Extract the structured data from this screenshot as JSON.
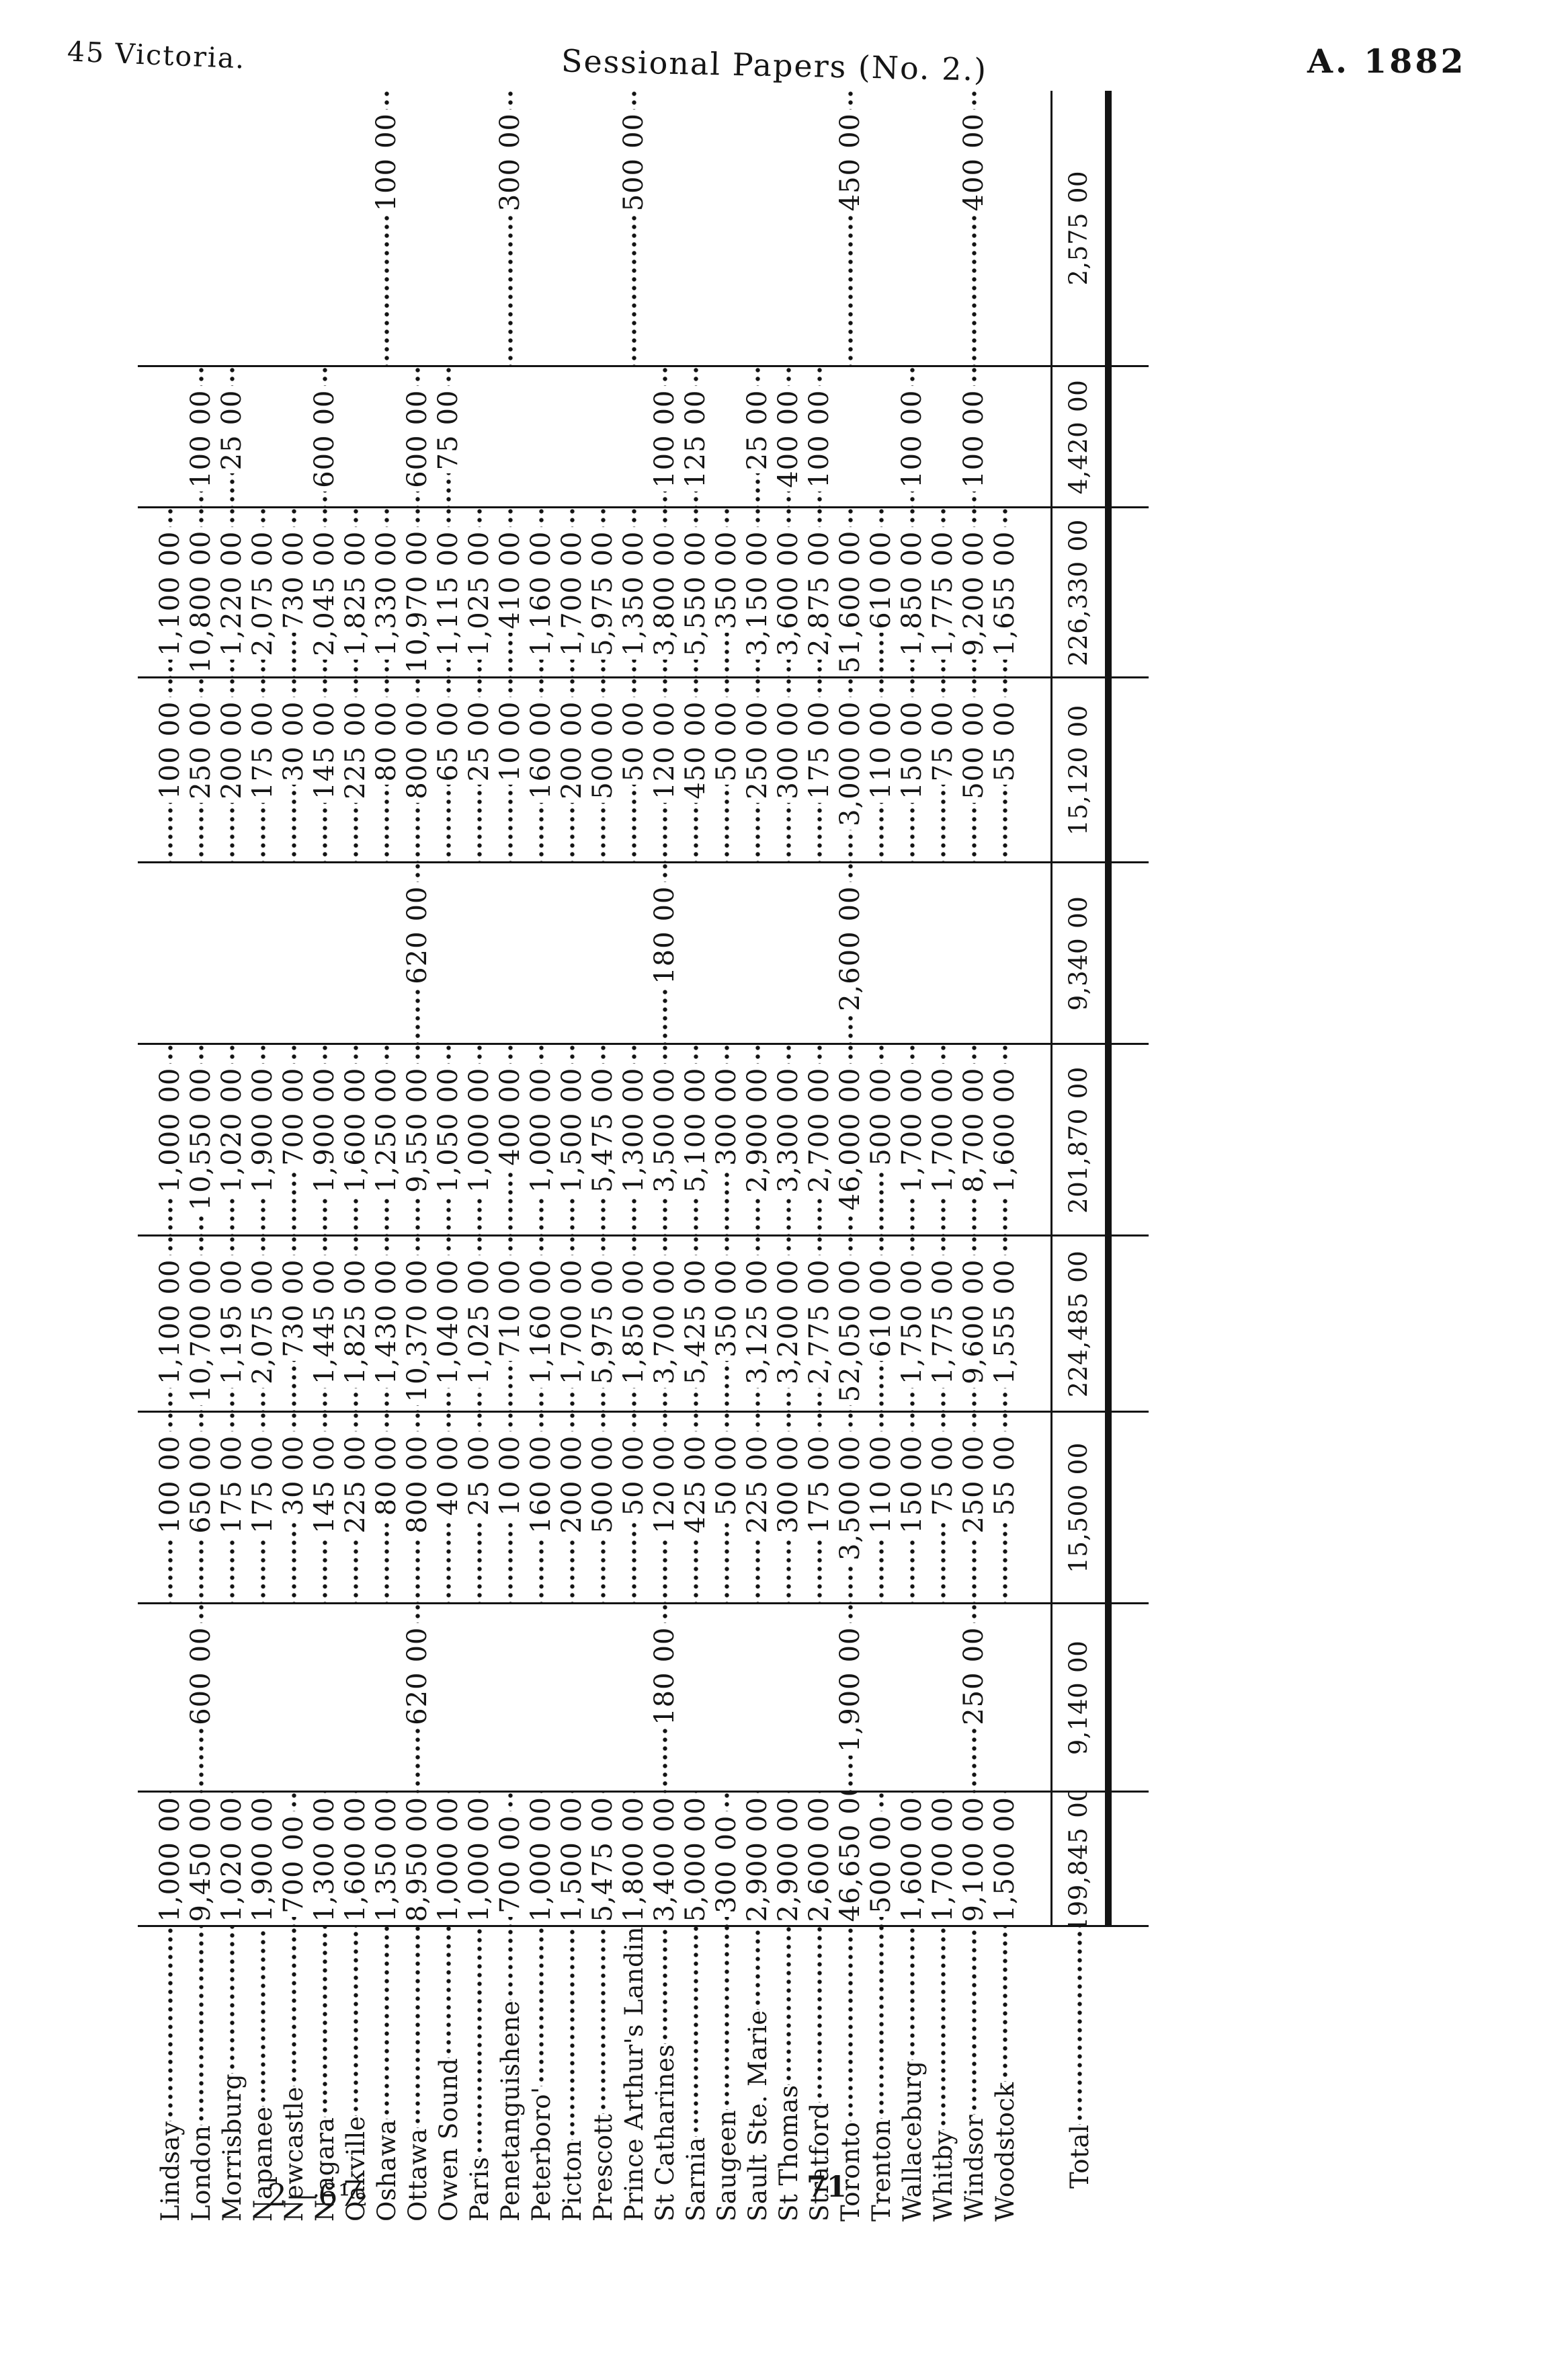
{
  "header": {
    "left": "45 Victoria.",
    "center": "Sessional Papers (No. 2.)",
    "right": "A. 1882"
  },
  "footer": {
    "signature": "2—6½",
    "page_number": "71"
  },
  "table": {
    "orientation": "rotated-90-ccw",
    "total_label": "Total",
    "rows": [
      {
        "name": "Lindsay",
        "values": [
          "1,000 00",
          "",
          "100 00",
          "1,100 00",
          "1,000 00",
          "",
          "100 00",
          "1,100 00",
          "",
          ""
        ]
      },
      {
        "name": "London",
        "values": [
          "9,450 00",
          "600 00",
          "650 00",
          "10,700 00",
          "10,550 00",
          "",
          "250 00",
          "10,800 00",
          "100 00",
          ""
        ]
      },
      {
        "name": "Morrisburg",
        "values": [
          "1,020 00",
          "",
          "175 00",
          "1,195 00",
          "1,020 00",
          "",
          "200 00",
          "1,220 00",
          "25 00",
          ""
        ]
      },
      {
        "name": "Napanee",
        "values": [
          "1,900 00",
          "",
          "175 00",
          "2,075 00",
          "1,900 00",
          "",
          "175 00",
          "2,075 00",
          "",
          ""
        ]
      },
      {
        "name": "Newcastle",
        "values": [
          "700 00",
          "",
          "30 00",
          "730 00",
          "700 00",
          "",
          "30 00",
          "730 00",
          "",
          ""
        ]
      },
      {
        "name": "Niagara",
        "values": [
          "1,300 00",
          "",
          "145 00",
          "1,445 00",
          "1,900 00",
          "",
          "145 00",
          "2,045 00",
          "600 00",
          ""
        ]
      },
      {
        "name": "Oakville",
        "values": [
          "1,600 00",
          "",
          "225 00",
          "1,825 00",
          "1,600 00",
          "",
          "225 00",
          "1,825 00",
          "",
          ""
        ]
      },
      {
        "name": "Oshawa",
        "values": [
          "1,350 00",
          "",
          "80 00",
          "1,430 00",
          "1,250 00",
          "",
          "80 00",
          "1,330 00",
          "",
          "100 00"
        ]
      },
      {
        "name": "Ottawa",
        "values": [
          "8,950 00",
          "620 00",
          "800 00",
          "10,370 00",
          "9,550 00",
          "620 00",
          "800 00",
          "10,970 00",
          "600 00",
          ""
        ]
      },
      {
        "name": "Owen Sound",
        "values": [
          "1,000 00",
          "",
          "40 00",
          "1,040 00",
          "1,050 00",
          "",
          "65 00",
          "1,115 00",
          "75 00",
          ""
        ]
      },
      {
        "name": "Paris",
        "values": [
          "1,000 00",
          "",
          "25 00",
          "1,025 00",
          "1,000 00",
          "",
          "25 00",
          "1,025 00",
          "",
          ""
        ]
      },
      {
        "name": "Penetanguishene",
        "values": [
          "700 00",
          "",
          "10 00",
          "710 00",
          "400 00",
          "",
          "10 00",
          "410 00",
          "",
          "300 00"
        ]
      },
      {
        "name": "Peterboro'",
        "values": [
          "1,000 00",
          "",
          "160 00",
          "1,160 00",
          "1,000 00",
          "",
          "160 00",
          "1,160 00",
          "",
          ""
        ]
      },
      {
        "name": "Picton",
        "values": [
          "1,500 00",
          "",
          "200 00",
          "1,700 00",
          "1,500 00",
          "",
          "200 00",
          "1,700 00",
          "",
          ""
        ]
      },
      {
        "name": "Prescott",
        "values": [
          "5,475 00",
          "",
          "500 00",
          "5,975 00",
          "5,475 00",
          "",
          "500 00",
          "5,975 00",
          "",
          ""
        ]
      },
      {
        "name": "Prince Arthur's Landing",
        "values": [
          "1,800 00",
          "",
          "50 00",
          "1,850 00",
          "1,300 00",
          "",
          "50 00",
          "1,350 00",
          "",
          "500 00"
        ]
      },
      {
        "name": "St Catharines",
        "values": [
          "3,400 00",
          "180 00",
          "120 00",
          "3,700 00",
          "3,500 00",
          "180 00",
          "120 00",
          "3,800 00",
          "100 00",
          ""
        ]
      },
      {
        "name": "Sarnia",
        "values": [
          "5,000 00",
          "",
          "425 00",
          "5,425 00",
          "5,100 00",
          "",
          "450 00",
          "5,550 00",
          "125 00",
          ""
        ]
      },
      {
        "name": "Saugeen",
        "values": [
          "300 00",
          "",
          "50 00",
          "350 00",
          "300 00",
          "",
          "50 00",
          "350 00",
          "",
          ""
        ]
      },
      {
        "name": "Sault Ste. Marie",
        "values": [
          "2,900 00",
          "",
          "225 00",
          "3,125 00",
          "2,900 00",
          "",
          "250 00",
          "3,150 00",
          "25 00",
          ""
        ]
      },
      {
        "name": "St Thomas",
        "values": [
          "2,900 00",
          "",
          "300 00",
          "3,200 00",
          "3,300 00",
          "",
          "300 00",
          "3,600 00",
          "400 00",
          ""
        ]
      },
      {
        "name": "Stratford",
        "values": [
          "2,600 00",
          "",
          "175 00",
          "2,775 00",
          "2,700 00",
          "",
          "175 00",
          "2,875 00",
          "100 00",
          ""
        ]
      },
      {
        "name": "Toronto",
        "values": [
          "46,650 00",
          "1,900 00",
          "3,500 00",
          "52,050 00",
          "46,000 00",
          "2,600 00",
          "3,000 00",
          "51,600 00",
          "",
          "450 00"
        ]
      },
      {
        "name": "Trenton",
        "values": [
          "500 00",
          "",
          "110 00",
          "610 00",
          "500 00",
          "",
          "110 00",
          "610 00",
          "",
          ""
        ]
      },
      {
        "name": "Wallaceburg",
        "values": [
          "1,600 00",
          "",
          "150 00",
          "1,750 00",
          "1,700 00",
          "",
          "150 00",
          "1,850 00",
          "100 00",
          ""
        ]
      },
      {
        "name": "Whitby",
        "values": [
          "1,700 00",
          "",
          "75 00",
          "1,775 00",
          "1,700 00",
          "",
          "75 00",
          "1,775 00",
          "",
          ""
        ]
      },
      {
        "name": "Windsor",
        "values": [
          "9,100 00",
          "250 00",
          "250 00",
          "9,600 00",
          "8,700 00",
          "",
          "500 00",
          "9,200 00",
          "100 00",
          "400 00"
        ]
      },
      {
        "name": "Woodstock",
        "values": [
          "1,500 00",
          "",
          "55 00",
          "1,555 00",
          "1,600 00",
          "",
          "55 00",
          "1,655 00",
          "",
          ""
        ]
      }
    ],
    "totals": [
      "199,845 00",
      "9,140 00",
      "15,500 00",
      "224,485 00",
      "201,870 00",
      "9,340 00",
      "15,120 00",
      "226,330 00",
      "4,420 00",
      "2,575 00"
    ]
  }
}
